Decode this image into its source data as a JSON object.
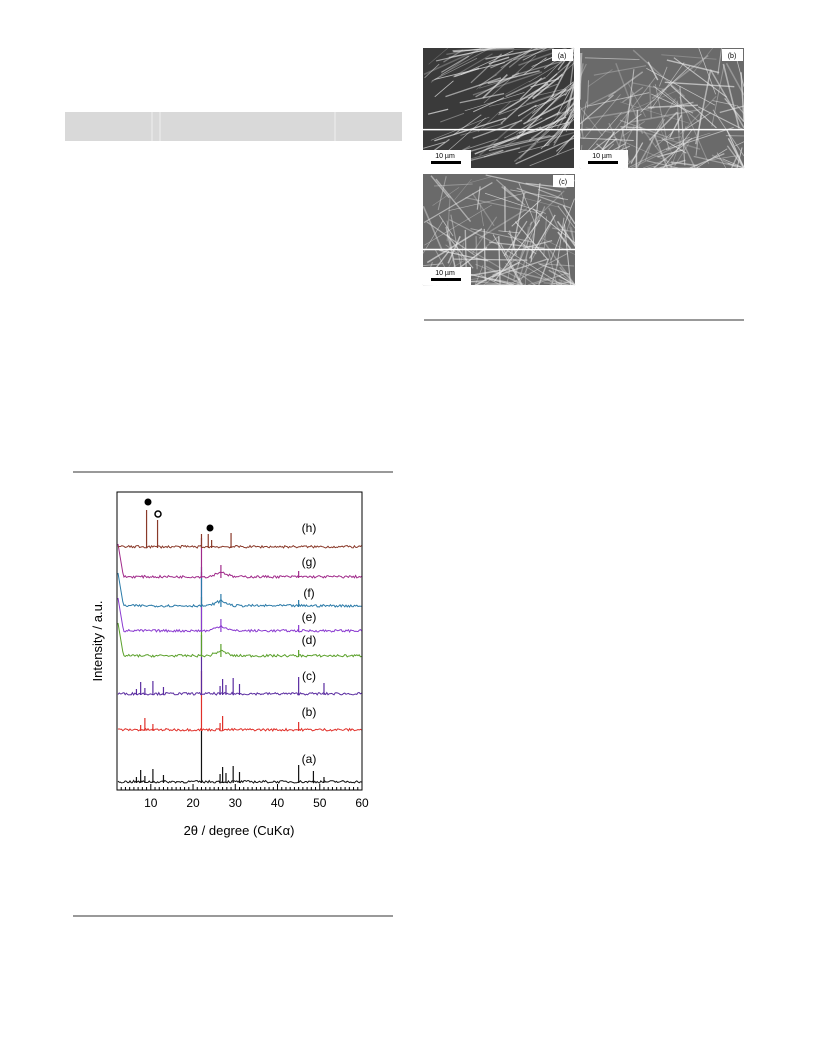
{
  "figure_sem": {
    "panels": [
      {
        "label": "(a)",
        "scale": "10 µm"
      },
      {
        "label": "(b)",
        "scale": "10 µm"
      },
      {
        "label": "(c)",
        "scale": "10 µm"
      }
    ]
  },
  "chart_data": {
    "type": "line",
    "xlabel": "2θ / degree (CuKα)",
    "ylabel": "Intensity / a.u.",
    "xlim": [
      2,
      60
    ],
    "xticks": [
      10,
      20,
      30,
      40,
      50,
      60
    ],
    "series": [
      {
        "name": "(a)",
        "color": "#111111",
        "peaks": [
          6.6,
          7.6,
          8.6,
          10.5,
          13,
          22,
          26.4,
          27,
          27.8,
          29.5,
          31,
          45,
          48.5,
          51
        ]
      },
      {
        "name": "(b)",
        "color": "#e0302a",
        "peaks": [
          7.6,
          8.6,
          10.5,
          22,
          26.4,
          27,
          45
        ]
      },
      {
        "name": "(c)",
        "color": "#5a2ca0",
        "peaks": [
          6.6,
          7.6,
          8.6,
          10.5,
          13,
          22,
          26.4,
          27,
          27.8,
          29.5,
          31,
          45,
          51
        ]
      },
      {
        "name": "(d)",
        "color": "#5aa02a",
        "peaks": [
          22,
          26.6,
          45
        ]
      },
      {
        "name": "(e)",
        "color": "#8a3ad0",
        "peaks": [
          22,
          26.6,
          45
        ]
      },
      {
        "name": "(f)",
        "color": "#2a7aa8",
        "peaks": [
          22,
          26.6,
          45
        ]
      },
      {
        "name": "(g)",
        "color": "#a02a8a",
        "peaks": [
          22,
          26.6,
          45
        ]
      },
      {
        "name": "(h)",
        "color": "#8a3a2a",
        "peaks": [
          9,
          11.6,
          22,
          23.6,
          24.4,
          29
        ]
      }
    ]
  }
}
